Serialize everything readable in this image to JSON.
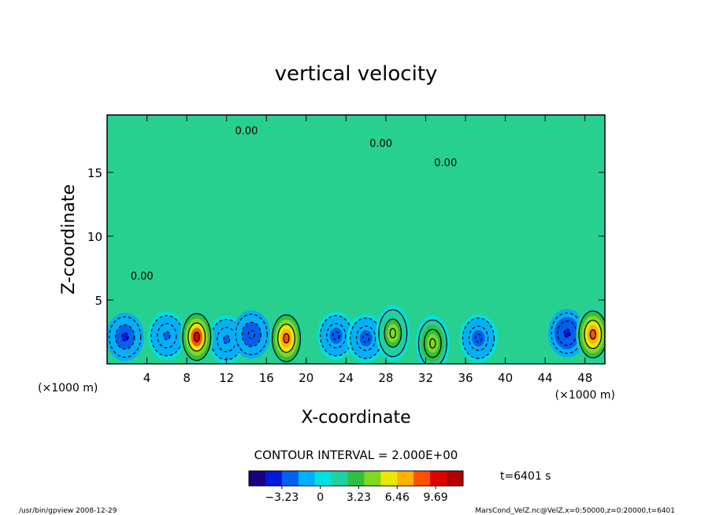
{
  "chart_data": {
    "type": "heatmap",
    "title": "vertical velocity",
    "xlabel": "X-coordinate",
    "ylabel": "Z-coordinate",
    "x_unit_left": "(×1000 m)",
    "x_unit_right": "(×1000 m)",
    "xlim": [
      0,
      50
    ],
    "ylim": [
      0,
      19.5
    ],
    "x_ticks": [
      4,
      8,
      12,
      16,
      20,
      24,
      28,
      32,
      36,
      40,
      44,
      48
    ],
    "x_tick_labels": [
      "4",
      "8",
      "12",
      "16",
      "20",
      "24",
      "28",
      "32",
      "36",
      "40",
      "44",
      "48"
    ],
    "y_ticks": [
      5,
      10,
      15
    ],
    "y_tick_labels": [
      "5",
      "10",
      "15"
    ],
    "contour_labels": [
      {
        "text": "0.00",
        "x": 14.0,
        "y": 18.0
      },
      {
        "text": "0.00",
        "x": 27.5,
        "y": 17.0
      },
      {
        "text": "0.00",
        "x": 34.0,
        "y": 15.5
      },
      {
        "text": "0.00",
        "x": 3.5,
        "y": 6.6
      }
    ],
    "updrafts": [
      {
        "x": 9.0,
        "z": 2.1,
        "peak": 9.5
      },
      {
        "x": 18.0,
        "z": 2.0,
        "peak": 8.5
      },
      {
        "x": 28.7,
        "z": 2.4,
        "peak": 4.5
      },
      {
        "x": 32.7,
        "z": 1.6,
        "peak": 4.8
      },
      {
        "x": 48.8,
        "z": 2.3,
        "peak": 9.0
      }
    ],
    "downdrafts": [
      {
        "x": 1.8,
        "z": 2.1,
        "peak": -3.6
      },
      {
        "x": 6.0,
        "z": 2.2,
        "peak": -2.2
      },
      {
        "x": 12.0,
        "z": 1.9,
        "peak": -2.0
      },
      {
        "x": 14.5,
        "z": 2.3,
        "peak": -3.0
      },
      {
        "x": 23.0,
        "z": 2.2,
        "peak": -2.4
      },
      {
        "x": 26.0,
        "z": 2.0,
        "peak": -2.4
      },
      {
        "x": 37.3,
        "z": 2.0,
        "peak": -2.4
      },
      {
        "x": 46.2,
        "z": 2.4,
        "peak": -3.8
      }
    ],
    "contour_interval_label": "CONTOUR INTERVAL = 2.000E+00",
    "colorbar": {
      "min": -6.0,
      "max": 12.0,
      "tick_values": [
        -3.23,
        0,
        3.23,
        6.46,
        9.69
      ],
      "tick_labels": [
        "−3.23",
        "0",
        "3.23",
        "6.46",
        "9.69"
      ],
      "colors": [
        "#1a0080",
        "#0018d8",
        "#0060f0",
        "#00b0f8",
        "#00e0e0",
        "#20d0a0",
        "#30c040",
        "#80d820",
        "#e8e800",
        "#ffb000",
        "#ff5000",
        "#e00000",
        "#b00000"
      ]
    },
    "time_label": "t=6401 s"
  },
  "footer": {
    "left": "/usr/bin/gpview   2008-12-29",
    "right": "MarsCond_VelZ.nc@VelZ,x=0:50000,z=0:20000,t=6401"
  }
}
